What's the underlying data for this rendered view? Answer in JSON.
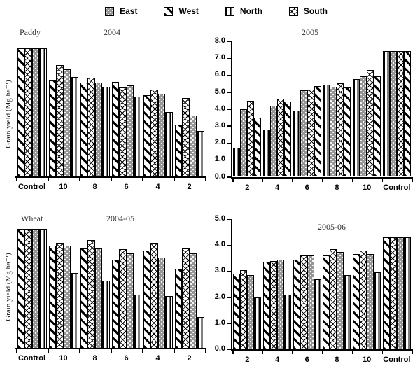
{
  "legend": [
    {
      "label": "East",
      "pattern": "East"
    },
    {
      "label": "West",
      "pattern": "West"
    },
    {
      "label": "North",
      "pattern": "North"
    },
    {
      "label": "South",
      "pattern": "South"
    }
  ],
  "colors": {
    "east_fill": "#969696",
    "bar_outline": "#000000",
    "axis": "#000000",
    "title_text": "#2e2e2e"
  },
  "chart_data": [
    {
      "type": "bar",
      "panel_label": "Paddy",
      "title": "2004",
      "ylabel": "Grain yield (Mg ha⁻¹)",
      "categories": [
        "Control",
        "10",
        "8",
        "6",
        "4",
        "2"
      ],
      "series": [
        {
          "name": "West",
          "values": [
            7.6,
            5.7,
            5.55,
            5.6,
            4.8,
            3.05
          ]
        },
        {
          "name": "South",
          "values": [
            7.6,
            6.6,
            5.85,
            5.25,
            5.15,
            4.65
          ]
        },
        {
          "name": "East",
          "values": [
            7.6,
            6.35,
            5.55,
            5.4,
            4.9,
            3.6
          ]
        },
        {
          "name": "North",
          "values": [
            7.6,
            5.9,
            5.3,
            4.75,
            3.8,
            2.7
          ]
        }
      ],
      "ylim": [
        0,
        8
      ],
      "yticks_visible": false,
      "grid": false,
      "legend_position": "top-shared"
    },
    {
      "type": "bar",
      "panel_label": "",
      "title": "2005",
      "ylabel": "",
      "categories": [
        "2",
        "4",
        "6",
        "8",
        "10",
        "Control"
      ],
      "series": [
        {
          "name": "North",
          "values": [
            1.7,
            2.8,
            3.9,
            5.45,
            5.75,
            7.4
          ]
        },
        {
          "name": "East",
          "values": [
            4.0,
            4.2,
            5.1,
            5.3,
            5.95,
            7.4
          ]
        },
        {
          "name": "South",
          "values": [
            4.5,
            4.6,
            5.15,
            5.5,
            6.3,
            7.4
          ]
        },
        {
          "name": "West",
          "values": [
            3.5,
            4.45,
            5.35,
            5.25,
            5.95,
            7.4
          ]
        }
      ],
      "ylim": [
        0,
        8
      ],
      "ytick_step": 1,
      "yticks_visible": true,
      "ytick_labels": [
        "0.0",
        "1.0",
        "2.0",
        "3.0",
        "4.0",
        "5.0",
        "6.0",
        "7.0",
        "8.0"
      ],
      "grid": false,
      "legend_position": "top-shared"
    },
    {
      "type": "bar",
      "panel_label": "Wheat",
      "title": "2004-05",
      "ylabel": "Grain yield (Mg ha⁻¹)",
      "categories": [
        "Control",
        "10",
        "8",
        "6",
        "4",
        "2"
      ],
      "series": [
        {
          "name": "West",
          "values": [
            4.6,
            3.95,
            3.85,
            3.4,
            3.75,
            3.05
          ]
        },
        {
          "name": "South",
          "values": [
            4.6,
            4.05,
            4.15,
            3.8,
            4.05,
            3.85
          ]
        },
        {
          "name": "East",
          "values": [
            4.6,
            3.95,
            3.85,
            3.65,
            3.5,
            3.65
          ]
        },
        {
          "name": "North",
          "values": [
            4.6,
            2.9,
            2.6,
            2.05,
            2.0,
            1.2
          ]
        }
      ],
      "ylim": [
        0,
        5
      ],
      "yticks_visible": false,
      "grid": false,
      "legend_position": "top-shared"
    },
    {
      "type": "bar",
      "panel_label": "",
      "title": "2005-06",
      "ylabel": "",
      "categories": [
        "2",
        "4",
        "6",
        "8",
        "10",
        "Control"
      ],
      "series": [
        {
          "name": "West",
          "values": [
            2.9,
            3.35,
            3.45,
            3.6,
            3.65,
            4.3
          ]
        },
        {
          "name": "South",
          "values": [
            3.05,
            3.4,
            3.6,
            3.85,
            3.8,
            4.3
          ]
        },
        {
          "name": "East",
          "values": [
            2.85,
            3.45,
            3.6,
            3.75,
            3.65,
            4.3
          ]
        },
        {
          "name": "North",
          "values": [
            2.0,
            2.1,
            2.7,
            2.85,
            2.95,
            4.3
          ]
        }
      ],
      "ylim": [
        0,
        5
      ],
      "ytick_step": 1,
      "yticks_visible": true,
      "ytick_labels": [
        "0.0",
        "1.0",
        "2.0",
        "3.0",
        "4.0",
        "5.0"
      ],
      "grid": false,
      "legend_position": "top-shared"
    }
  ]
}
